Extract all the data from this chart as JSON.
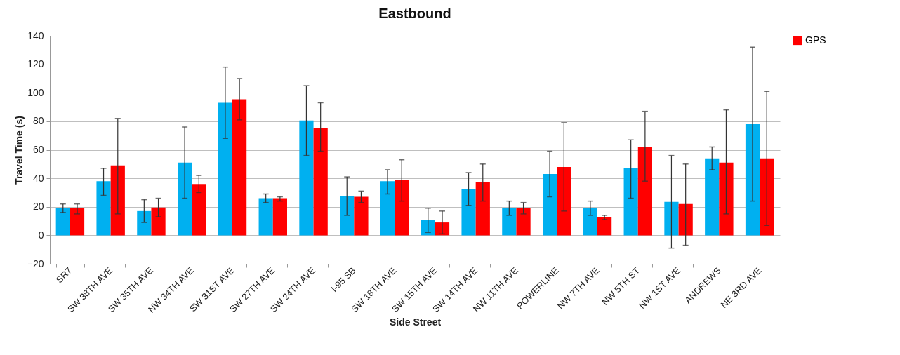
{
  "chart_data": {
    "type": "bar",
    "title": "Eastbound",
    "xlabel": "Side Street",
    "ylabel": "Travel Time (s)",
    "categories": [
      "SR7",
      "SW 38TH AVE",
      "SW 35TH AVE",
      "NW 34TH AVE",
      "SW 31ST AVE",
      "SW 27TH AVE",
      "SW 24TH AVE",
      "I-95 SB",
      "SW 18TH AVE",
      "SW 15TH AVE",
      "SW 14TH AVE",
      "NW 11TH AVE",
      "POWERLINE",
      "NW 7TH AVE",
      "NW 5TH ST",
      "NW 1ST AVE",
      "ANDREWS",
      "NE 3RD AVE"
    ],
    "series": [
      {
        "color": "#00b0f0",
        "values": [
          19,
          38,
          17,
          51,
          93,
          26,
          80.5,
          27.5,
          38,
          11,
          32.5,
          19,
          43,
          19,
          47,
          23.5,
          54,
          78
        ],
        "errors": [
          [
            16,
            22
          ],
          [
            28,
            47
          ],
          [
            9,
            25
          ],
          [
            26,
            76
          ],
          [
            68,
            118
          ],
          [
            23,
            29
          ],
          [
            56,
            105
          ],
          [
            14,
            41
          ],
          [
            29,
            46
          ],
          [
            2,
            19
          ],
          [
            21,
            44
          ],
          [
            14,
            24
          ],
          [
            27,
            59
          ],
          [
            14,
            24
          ],
          [
            26,
            67
          ],
          [
            -9,
            56
          ],
          [
            46,
            62
          ],
          [
            24,
            132
          ]
        ]
      },
      {
        "name": "GPS",
        "color": "#ff0000",
        "values": [
          19,
          49,
          19.5,
          36,
          95.5,
          26,
          75.5,
          27,
          39,
          9,
          37.5,
          19,
          48,
          12.5,
          62,
          22,
          51,
          54
        ],
        "errors": [
          [
            15,
            22
          ],
          [
            15,
            82
          ],
          [
            13,
            26
          ],
          [
            30,
            42
          ],
          [
            81,
            110
          ],
          [
            24,
            27
          ],
          [
            59,
            93
          ],
          [
            23,
            31
          ],
          [
            24,
            53
          ],
          [
            1,
            17
          ],
          [
            24,
            50
          ],
          [
            15,
            23
          ],
          [
            17,
            79
          ],
          [
            11,
            14
          ],
          [
            38,
            87
          ],
          [
            -7,
            50
          ],
          [
            15,
            88
          ],
          [
            7,
            101
          ]
        ]
      }
    ],
    "ylim": [
      -20,
      140
    ],
    "yticks": [
      -20,
      0,
      20,
      40,
      60,
      80,
      100,
      120,
      140
    ],
    "grid": "y",
    "legend": "right"
  }
}
